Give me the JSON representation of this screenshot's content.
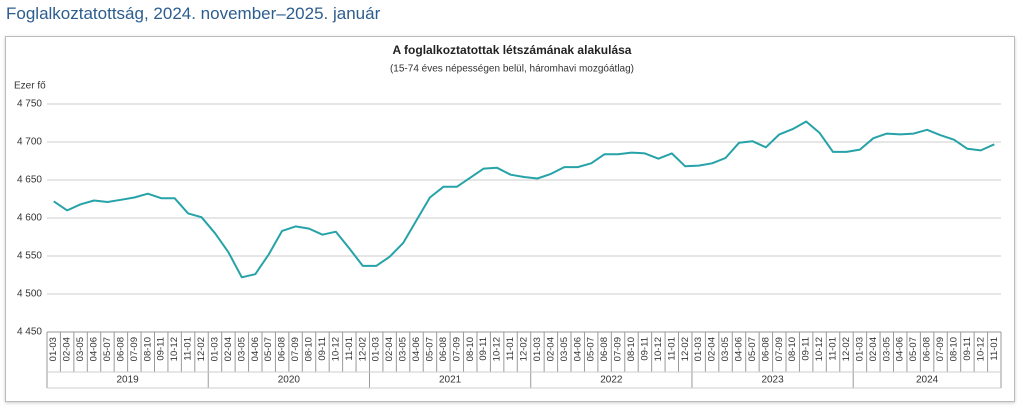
{
  "header": {
    "title": "Foglalkoztatottság, 2024. november–2025. január"
  },
  "chart_data": {
    "type": "line",
    "title": "A foglalkoztatottak létszámának alakulása",
    "subtitle": "(15-74 éves népességen belül, háromhavi mozgóátlag)",
    "y_label": "Ezer fő",
    "categories": [
      "01-03",
      "02-04",
      "03-05",
      "04-06",
      "05-07",
      "06-08",
      "07-09",
      "08-10",
      "09-11",
      "10-12",
      "11-01",
      "12-02",
      "01-03",
      "02-04",
      "03-05",
      "04-06",
      "05-07",
      "06-08",
      "07-09",
      "08-10",
      "09-11",
      "10-12",
      "11-01",
      "12-02",
      "01-03",
      "02-04",
      "03-05",
      "04-06",
      "05-07",
      "06-08",
      "07-09",
      "08-10",
      "09-11",
      "10-12",
      "11-01",
      "12-02",
      "01-03",
      "02-04",
      "03-05",
      "04-06",
      "05-07",
      "06-08",
      "07-09",
      "08-10",
      "09-11",
      "10-12",
      "11-01",
      "12-02",
      "01-03",
      "02-04",
      "03-05",
      "04-06",
      "05-07",
      "06-08",
      "07-09",
      "08-10",
      "09-11",
      "10-12",
      "11-01",
      "12-02",
      "01-03",
      "02-04",
      "03-05",
      "04-06",
      "05-07",
      "06-08",
      "07-09",
      "08-10",
      "09-11",
      "10-12",
      "11-01"
    ],
    "groups": [
      "2019",
      "2020",
      "2021",
      "2022",
      "2023",
      "2024"
    ],
    "values": [
      4622,
      4610,
      4618,
      4623,
      4621,
      4624,
      4627,
      4632,
      4626,
      4626,
      4606,
      4601,
      4580,
      4555,
      4522,
      4526,
      4552,
      4583,
      4589,
      4586,
      4578,
      4582,
      4560,
      4537,
      4537,
      4549,
      4567,
      4597,
      4627,
      4641,
      4641,
      4653,
      4665,
      4666,
      4657,
      4654,
      4652,
      4658,
      4667,
      4667,
      4672,
      4684,
      4684,
      4686,
      4685,
      4678,
      4685,
      4668,
      4669,
      4672,
      4679,
      4699,
      4701,
      4693,
      4710,
      4717,
      4727,
      4712,
      4687,
      4687,
      4690,
      4705,
      4711,
      4710,
      4711,
      4716,
      4709,
      4703,
      4691,
      4689,
      4697
    ],
    "color": "#26a3a8",
    "ylim": [
      4450,
      4750
    ],
    "yticks": [
      {
        "value": 4450,
        "label": "4 450"
      },
      {
        "value": 4500,
        "label": "4 500"
      },
      {
        "value": 4550,
        "label": "4 550"
      },
      {
        "value": 4600,
        "label": "4 600"
      },
      {
        "value": 4650,
        "label": "4 650"
      },
      {
        "value": 4700,
        "label": "4 700"
      },
      {
        "value": 4750,
        "label": "4 750"
      }
    ],
    "grid": true
  }
}
